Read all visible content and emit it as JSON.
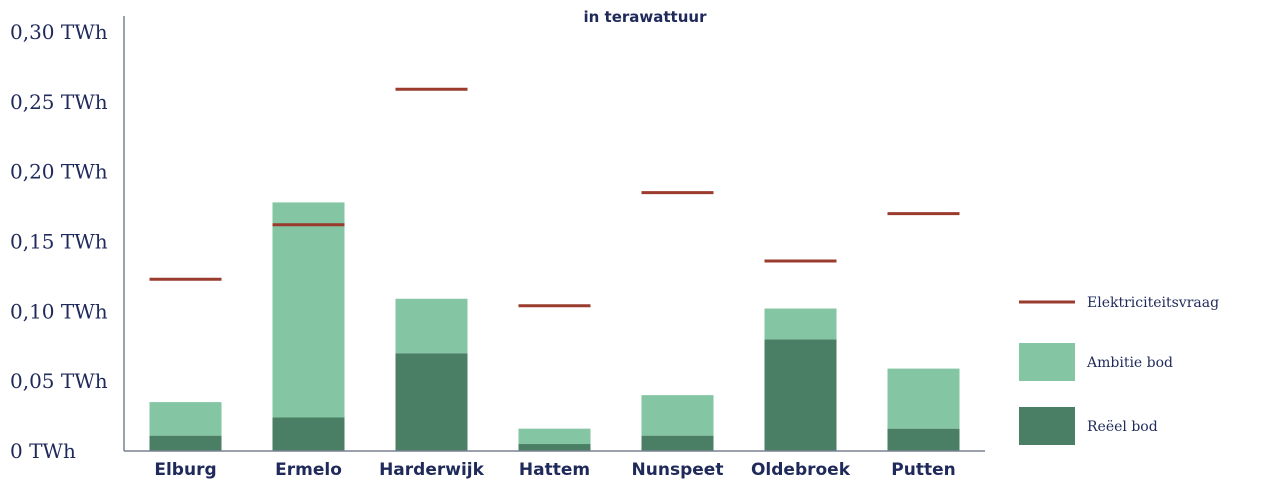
{
  "chart_data": {
    "type": "bar",
    "stacked": true,
    "title": "",
    "subtitle": "in terawattuur",
    "categories": [
      "Elburg",
      "Ermelo",
      "Harderwijk",
      "Hattem",
      "Nunspeet",
      "Oldebroek",
      "Putten"
    ],
    "series": [
      {
        "name": "Reëel bod",
        "kind": "bar",
        "color": "#4a7f66",
        "values": [
          0.011,
          0.024,
          0.07,
          0.005,
          0.011,
          0.08,
          0.016
        ]
      },
      {
        "name": "Ambitie bod",
        "kind": "bar",
        "color": "#84c5a3",
        "values": [
          0.024,
          0.154,
          0.039,
          0.011,
          0.029,
          0.022,
          0.043
        ]
      },
      {
        "name": "Elektriciteitsvraag",
        "kind": "line",
        "color": "#9a3b2e",
        "values": [
          0.123,
          0.162,
          0.259,
          0.104,
          0.185,
          0.136,
          0.17
        ]
      }
    ],
    "ylim": [
      0,
      0.3
    ],
    "yticks": [
      0,
      0.05,
      0.1,
      0.15,
      0.2,
      0.25,
      0.3
    ],
    "ytick_labels": [
      "0 TWh",
      "0,05 TWh",
      "0,10 TWh",
      "0,15 TWh",
      "0,20 TWh",
      "0,25 TWh",
      "0,30 TWh"
    ],
    "xlabel": "",
    "ylabel": "",
    "grid": false,
    "legend_position": "right",
    "legend_order": [
      "Elektriciteitsvraag",
      "Ambitie bod",
      "Reëel bod"
    ]
  }
}
